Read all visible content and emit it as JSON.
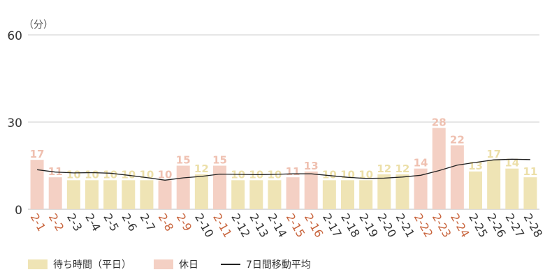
{
  "chart_data": {
    "type": "bar",
    "unit_label": "（分）",
    "ylim": [
      0,
      60
    ],
    "yticks": [
      "0",
      "30",
      "60"
    ],
    "categories": [
      "2-1",
      "2-2",
      "2-3",
      "2-4",
      "2-5",
      "2-6",
      "2-7",
      "2-8",
      "2-9",
      "2-10",
      "2-11",
      "2-12",
      "2-13",
      "2-14",
      "2-15",
      "2-16",
      "2-17",
      "2-18",
      "2-19",
      "2-20",
      "2-21",
      "2-22",
      "2-23",
      "2-24",
      "2-25",
      "2-26",
      "2-27",
      "2-28"
    ],
    "values": [
      17,
      11,
      10,
      10,
      10,
      10,
      10,
      10,
      15,
      12,
      15,
      10,
      10,
      10,
      11,
      13,
      10,
      10,
      10,
      12,
      12,
      14,
      28,
      22,
      13,
      17,
      14,
      11
    ],
    "holiday": [
      true,
      true,
      false,
      false,
      false,
      false,
      false,
      true,
      true,
      false,
      true,
      false,
      false,
      false,
      true,
      true,
      false,
      false,
      false,
      false,
      false,
      true,
      true,
      true,
      false,
      false,
      false,
      false
    ],
    "moving_average": [
      13.6,
      12.8,
      12.5,
      12.6,
      12.4,
      11.7,
      10.9,
      10.0,
      10.8,
      11.3,
      12.1,
      12.0,
      11.9,
      12.0,
      12.2,
      12.2,
      11.6,
      11.0,
      10.6,
      10.7,
      11.1,
      11.7,
      13.3,
      15.2,
      16.1,
      17.0,
      17.2,
      17.1
    ],
    "series": [
      {
        "name": "待ち時間（平日）",
        "color": "#efe4b5"
      },
      {
        "name": "休日",
        "color": "#f4d0c4"
      },
      {
        "name": "7日間移動平均",
        "color": "#222222"
      }
    ],
    "colors": {
      "weekday_bar": "#efe4b5",
      "holiday_bar": "#f4d0c4",
      "weekday_label": "#ecdfa8",
      "holiday_label": "#efc0b0",
      "holiday_tick": "#c8643c",
      "weekday_tick": "#333333",
      "grid": "#cccccc",
      "line": "#222222"
    }
  }
}
